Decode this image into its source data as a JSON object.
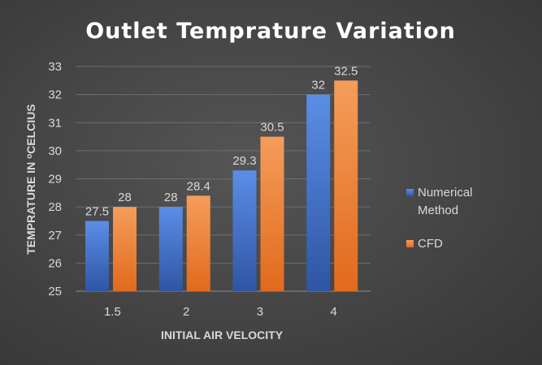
{
  "chart_data": {
    "type": "bar",
    "title": "Outlet Temprature Variation",
    "xlabel": "INITIAL AIR VELOCITY",
    "ylabel_main": "TEMPRATURE IN ",
    "ylabel_degree": "o",
    "ylabel_unit": "CELCIUS",
    "categories": [
      "1.5",
      "2",
      "3",
      "4"
    ],
    "ylim": [
      25,
      33
    ],
    "yticks": [
      25,
      26,
      27,
      28,
      29,
      30,
      31,
      32,
      33
    ],
    "grid": true,
    "legend_position": "right",
    "series": [
      {
        "name": "Numerical Method",
        "name_lines": [
          "Numerical",
          "Method"
        ],
        "values": [
          27.5,
          28,
          29.3,
          32
        ],
        "labels": [
          "27.5",
          "28",
          "29.3",
          "32"
        ],
        "color_top": "#5b8ee6",
        "color_bottom": "#2f55a4"
      },
      {
        "name": "CFD",
        "name_lines": [
          "CFD"
        ],
        "values": [
          28,
          28.4,
          30.5,
          32.5
        ],
        "labels": [
          "28",
          "28.4",
          "30.5",
          "32.5"
        ],
        "color_top": "#f59d5a",
        "color_bottom": "#e16a1c"
      }
    ]
  }
}
